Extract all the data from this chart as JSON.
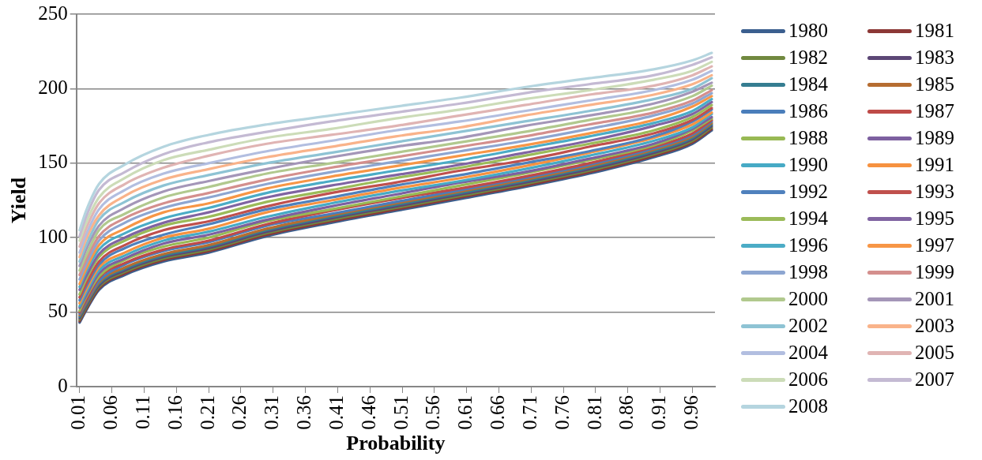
{
  "chart_data": {
    "type": "line",
    "xlabel": "Probability",
    "ylabel": "Yield",
    "x": [
      0.01,
      0.02,
      0.04,
      0.08,
      0.14,
      0.21,
      0.3,
      0.4,
      0.5,
      0.6,
      0.7,
      0.8,
      0.9,
      0.96,
      0.99
    ],
    "xlim": [
      0.005,
      0.995
    ],
    "xticks": [
      0.01,
      0.06,
      0.11,
      0.16,
      0.21,
      0.26,
      0.31,
      0.36,
      0.41,
      0.46,
      0.51,
      0.56,
      0.61,
      0.66,
      0.71,
      0.76,
      0.81,
      0.86,
      0.91,
      0.96
    ],
    "ylim": [
      0,
      250
    ],
    "yticks": [
      0,
      50,
      100,
      150,
      200,
      250
    ],
    "grid": "y",
    "legend": "right",
    "marker": "none",
    "line_style": "solid",
    "series": [
      {
        "name": "1980",
        "color": "#3b5f8f",
        "values": [
          43,
          51,
          65,
          75,
          84,
          90,
          101,
          110,
          118,
          126,
          134,
          143,
          154,
          163,
          172
        ]
      },
      {
        "name": "1981",
        "color": "#8c3836",
        "values": [
          44,
          52,
          66,
          76,
          85,
          91,
          102,
          111,
          119,
          127,
          135,
          144,
          155,
          164,
          173
        ]
      },
      {
        "name": "1982",
        "color": "#71893f",
        "values": [
          45,
          53,
          67,
          77,
          86,
          92,
          103,
          112,
          120,
          128,
          136,
          145,
          156,
          165,
          174
        ]
      },
      {
        "name": "1983",
        "color": "#5c4776",
        "values": [
          46,
          54,
          68,
          78,
          87,
          93,
          104,
          113,
          121,
          129,
          137,
          146,
          157,
          166,
          175
        ]
      },
      {
        "name": "1984",
        "color": "#357d91",
        "values": [
          47,
          55,
          69,
          79,
          88,
          94,
          105,
          114,
          122,
          130,
          138,
          147,
          158,
          167,
          176
        ]
      },
      {
        "name": "1985",
        "color": "#b66d31",
        "values": [
          48,
          56,
          70,
          80,
          89,
          95,
          106,
          115,
          123,
          131,
          139,
          148,
          159,
          168,
          177
        ]
      },
      {
        "name": "1986",
        "color": "#4a7ebb",
        "values": [
          49,
          57,
          71,
          82,
          91,
          97,
          108,
          116,
          124,
          132,
          140,
          149,
          160,
          169,
          178
        ]
      },
      {
        "name": "1987",
        "color": "#be4b48",
        "values": [
          50,
          58,
          73,
          83,
          92,
          98,
          109,
          118,
          126,
          133,
          141,
          150,
          161,
          170,
          179
        ]
      },
      {
        "name": "1988",
        "color": "#98b954",
        "values": [
          51,
          60,
          74,
          85,
          94,
          100,
          111,
          119,
          127,
          135,
          143,
          152,
          162,
          172,
          180
        ]
      },
      {
        "name": "1989",
        "color": "#7d60a0",
        "values": [
          53,
          61,
          76,
          86,
          96,
          102,
          112,
          121,
          129,
          137,
          144,
          153,
          163,
          173,
          181
        ]
      },
      {
        "name": "1990",
        "color": "#46aac5",
        "values": [
          54,
          63,
          78,
          88,
          98,
          104,
          114,
          123,
          131,
          138,
          146,
          155,
          165,
          174,
          183
        ]
      },
      {
        "name": "1991",
        "color": "#f69240",
        "values": [
          56,
          65,
          80,
          90,
          100,
          106,
          117,
          125,
          133,
          140,
          148,
          157,
          167,
          176,
          184
        ]
      },
      {
        "name": "1992",
        "color": "#4f81bd",
        "values": [
          58,
          67,
          82,
          93,
          102,
          109,
          119,
          127,
          135,
          142,
          150,
          158,
          168,
          178,
          186
        ]
      },
      {
        "name": "1993",
        "color": "#c0504d",
        "values": [
          60,
          69,
          84,
          95,
          105,
          111,
          121,
          130,
          137,
          145,
          152,
          161,
          170,
          179,
          187
        ]
      },
      {
        "name": "1994",
        "color": "#9bbb59",
        "values": [
          62,
          72,
          87,
          98,
          108,
          114,
          124,
          132,
          140,
          147,
          155,
          163,
          172,
          181,
          189
        ]
      },
      {
        "name": "1995",
        "color": "#8064a2",
        "values": [
          65,
          74,
          89,
          100,
          110,
          117,
          127,
          135,
          142,
          149,
          157,
          165,
          175,
          183,
          191
        ]
      },
      {
        "name": "1996",
        "color": "#4bacc6",
        "values": [
          67,
          77,
          92,
          103,
          113,
          120,
          130,
          138,
          145,
          152,
          160,
          168,
          177,
          185,
          193
        ]
      },
      {
        "name": "1997",
        "color": "#f79646",
        "values": [
          69,
          79,
          95,
          106,
          117,
          123,
          133,
          141,
          148,
          155,
          162,
          170,
          179,
          188,
          195
        ]
      },
      {
        "name": "1998",
        "color": "#8da6d1",
        "values": [
          72,
          82,
          98,
          110,
          120,
          127,
          136,
          144,
          151,
          158,
          165,
          173,
          182,
          190,
          197
        ]
      },
      {
        "name": "1999",
        "color": "#d48f8d",
        "values": [
          75,
          85,
          101,
          113,
          123,
          130,
          139,
          147,
          154,
          161,
          168,
          176,
          184,
          192,
          199
        ]
      },
      {
        "name": "2000",
        "color": "#b1c98e",
        "values": [
          78,
          88,
          105,
          116,
          127,
          134,
          143,
          150,
          157,
          164,
          171,
          179,
          187,
          195,
          202
        ]
      },
      {
        "name": "2001",
        "color": "#a496b8",
        "values": [
          81,
          92,
          108,
          120,
          131,
          138,
          146,
          154,
          161,
          167,
          175,
          182,
          190,
          198,
          204
        ]
      },
      {
        "name": "2002",
        "color": "#8ec3d4",
        "values": [
          84,
          95,
          112,
          124,
          135,
          142,
          150,
          157,
          164,
          171,
          178,
          185,
          193,
          200,
          207
        ]
      },
      {
        "name": "2003",
        "color": "#f9b38a",
        "values": [
          87,
          99,
          115,
          128,
          139,
          146,
          154,
          161,
          168,
          174,
          182,
          189,
          196,
          203,
          209
        ]
      },
      {
        "name": "2004",
        "color": "#b2bee0",
        "values": [
          90,
          102,
          119,
          132,
          143,
          150,
          158,
          165,
          172,
          178,
          185,
          192,
          199,
          206,
          212
        ]
      },
      {
        "name": "2005",
        "color": "#e0b4b3",
        "values": [
          94,
          106,
          123,
          136,
          147,
          155,
          163,
          169,
          175,
          182,
          189,
          196,
          202,
          209,
          215
        ]
      },
      {
        "name": "2006",
        "color": "#ccdcb8",
        "values": [
          98,
          110,
          127,
          140,
          152,
          159,
          167,
          173,
          180,
          186,
          193,
          199,
          206,
          212,
          218
        ]
      },
      {
        "name": "2007",
        "color": "#c4bad3",
        "values": [
          101,
          114,
          132,
          144,
          156,
          164,
          171,
          178,
          184,
          190,
          197,
          203,
          209,
          216,
          221
        ]
      },
      {
        "name": "2008",
        "color": "#b5d5df",
        "values": [
          105,
          118,
          136,
          149,
          161,
          169,
          176,
          182,
          188,
          194,
          201,
          207,
          213,
          219,
          224
        ]
      }
    ]
  }
}
